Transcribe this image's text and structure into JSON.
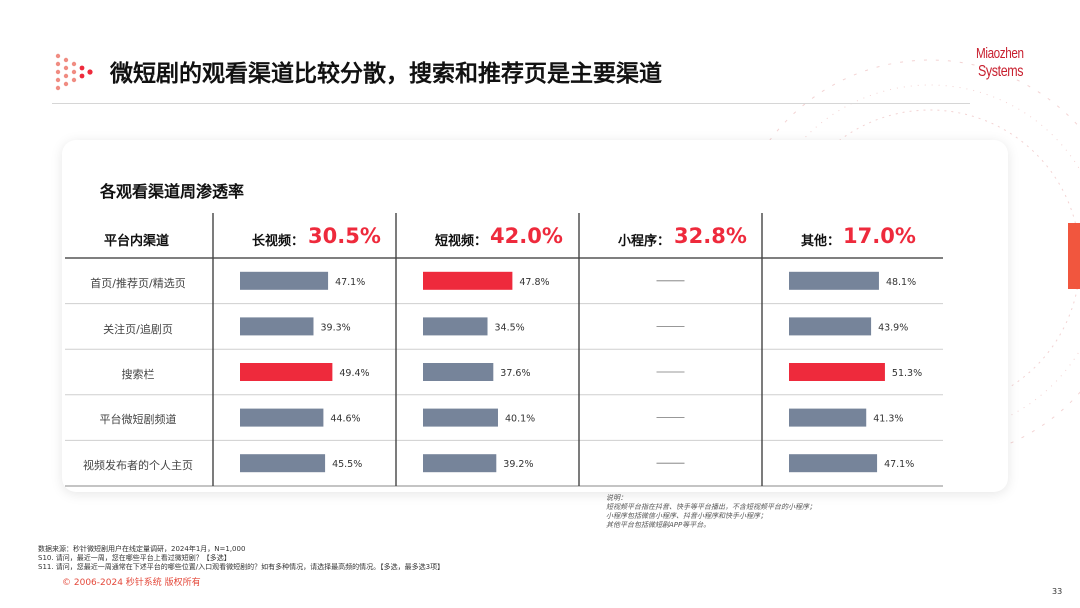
{
  "title": "微短剧的观看渠道比较分散，搜索和推荐页是主要渠道",
  "logo": {
    "line1": "Miaozhen",
    "line2": "Systems"
  },
  "card_title": "各观看渠道周渗透率",
  "colors": {
    "accent": "#ee2a3c",
    "bar_default": "#76849a",
    "brand": "#c8202f",
    "orange": "#f1563e"
  },
  "chart_data": {
    "type": "bar",
    "row_header": "平台内渠道",
    "categories": [
      "首页/推荐页/精选页",
      "关注页/追剧页",
      "搜索栏",
      "平台微短剧频道",
      "视频发布者的个人主页"
    ],
    "series": [
      {
        "name": "长视频：",
        "total": "30.5%",
        "values": [
          47.1,
          39.3,
          49.4,
          44.6,
          45.5
        ],
        "highlight": 2
      },
      {
        "name": "短视频：",
        "total": "42.0%",
        "values": [
          47.8,
          34.5,
          37.6,
          40.1,
          39.2
        ],
        "highlight": 0
      },
      {
        "name": "小程序：",
        "total": "32.8%",
        "values": [
          null,
          null,
          null,
          null,
          null
        ],
        "placeholder": "——",
        "highlight": -1
      },
      {
        "name": "其他：",
        "total": "17.0%",
        "values": [
          48.1,
          43.9,
          51.3,
          41.3,
          47.1
        ],
        "highlight": 2
      }
    ],
    "value_suffix": "%"
  },
  "note": {
    "heading": "说明：",
    "lines": [
      "短视频平台指在抖音、快手等平台播出，不含短视频平台的小程序；",
      "小程序包括微信小程序、抖音小程序和快手小程序；",
      "其他平台包括微短剧APP等平台。"
    ]
  },
  "source": {
    "lines": [
      "数据来源：秒针微短剧用户在线定量调研，2024年1月，N=1,000",
      "S10. 请问，最近一周，您在哪些平台上看过微短剧？【多选】",
      "S11. 请问，您最近一周通常在下述平台的哪些位置/入口观看微短剧的？如有多种情况，请选择最高频的情况。【多选，最多选3项】"
    ]
  },
  "copyright": "© 2006-2024 秒针系统 版权所有",
  "page_number": "33"
}
